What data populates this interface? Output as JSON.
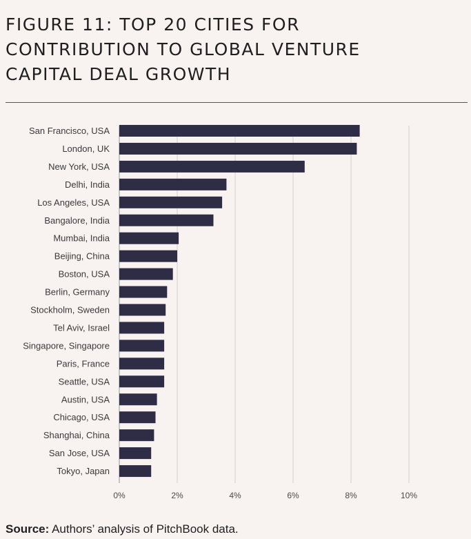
{
  "header": {
    "title_line1": "FIGURE 11: TOP 20 CITIES FOR",
    "title_line2": "CONTRIBUTION TO GLOBAL VENTURE",
    "title_line3": "CAPITAL DEAL GROWTH"
  },
  "footer": {
    "source_label": "Source:",
    "source_text": " Authors’ analysis of PitchBook data."
  },
  "colors": {
    "bar": "#2e2d45",
    "grid": "#d4d0cf",
    "background": "#f8f2f1"
  },
  "chart_data": {
    "type": "bar",
    "orientation": "horizontal",
    "title": "FIGURE 11: TOP 20 CITIES FOR CONTRIBUTION TO GLOBAL VENTURE CAPITAL DEAL GROWTH",
    "xlabel": "",
    "ylabel": "",
    "xlim": [
      0,
      10
    ],
    "unit": "%",
    "grid": true,
    "ticks": [
      "0%",
      "2%",
      "4%",
      "6%",
      "8%",
      "10%"
    ],
    "categories": [
      "San Francisco, USA",
      "London, UK",
      "New York, USA",
      "Delhi, India",
      "Los Angeles, USA",
      "Bangalore, India",
      "Mumbai, India",
      "Beijing, China",
      "Boston, USA",
      "Berlin, Germany",
      "Stockholm, Sweden",
      "Tel Aviv, Israel",
      "Singapore, Singapore",
      "Paris, France",
      "Seattle, USA",
      "Austin, USA",
      "Chicago, USA",
      "Shanghai, China",
      "San Jose, USA",
      "Tokyo, Japan"
    ],
    "values": [
      8.3,
      8.2,
      6.4,
      3.7,
      3.55,
      3.25,
      2.05,
      2.0,
      1.85,
      1.65,
      1.6,
      1.55,
      1.55,
      1.55,
      1.55,
      1.3,
      1.25,
      1.2,
      1.1,
      1.1
    ]
  }
}
